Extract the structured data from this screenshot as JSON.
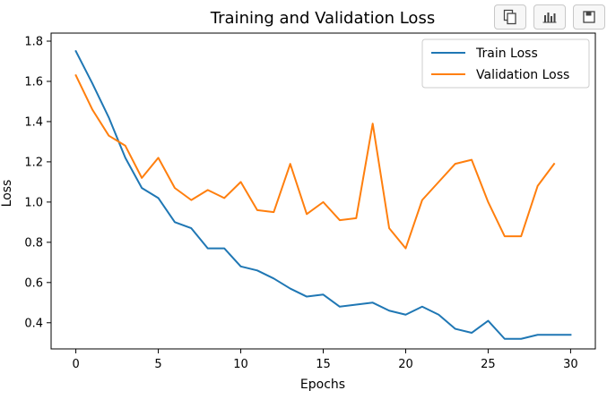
{
  "toolbar": {
    "buttons": [
      {
        "icon": "copy-icon"
      },
      {
        "icon": "bar-chart-icon"
      },
      {
        "icon": "save-icon"
      }
    ]
  },
  "chart_data": {
    "type": "line",
    "title": "Training and Validation Loss",
    "xlabel": "Epochs",
    "ylabel": "Loss",
    "xlim": [
      -1.5,
      31.5
    ],
    "ylim": [
      0.27,
      1.84
    ],
    "xticks": [
      0,
      5,
      10,
      15,
      20,
      25,
      30
    ],
    "yticks": [
      0.4,
      0.6,
      0.8,
      1.0,
      1.2,
      1.4,
      1.6,
      1.8
    ],
    "ytick_labels": [
      "0.4",
      "0.6",
      "0.8",
      "1.0",
      "1.2",
      "1.4",
      "1.6",
      "1.8"
    ],
    "grid": false,
    "legend_position": "top-right",
    "series": [
      {
        "name": "Train Loss",
        "color": "#1f77b4",
        "x": [
          0,
          1,
          2,
          3,
          4,
          5,
          6,
          7,
          8,
          9,
          10,
          11,
          12,
          13,
          14,
          15,
          16,
          17,
          18,
          19,
          20,
          21,
          22,
          23,
          24,
          25,
          26,
          27,
          28,
          29,
          30
        ],
        "values": [
          1.75,
          1.59,
          1.42,
          1.22,
          1.07,
          1.02,
          0.9,
          0.87,
          0.77,
          0.77,
          0.68,
          0.66,
          0.62,
          0.57,
          0.53,
          0.54,
          0.48,
          0.49,
          0.5,
          0.46,
          0.44,
          0.48,
          0.44,
          0.37,
          0.35,
          0.41,
          0.32,
          0.32,
          0.34,
          0.34,
          0.34
        ]
      },
      {
        "name": "Validation Loss",
        "color": "#ff7f0e",
        "x": [
          0,
          1,
          2,
          3,
          4,
          5,
          6,
          7,
          8,
          9,
          10,
          11,
          12,
          13,
          14,
          15,
          16,
          17,
          18,
          19,
          20,
          21,
          22,
          23,
          24,
          25,
          26,
          27,
          28,
          29
        ],
        "values": [
          1.63,
          1.46,
          1.33,
          1.28,
          1.12,
          1.22,
          1.07,
          1.01,
          1.06,
          1.02,
          1.1,
          0.96,
          0.95,
          1.19,
          0.94,
          1.0,
          0.91,
          0.92,
          1.39,
          0.87,
          0.77,
          1.01,
          1.1,
          1.19,
          1.21,
          1.0,
          0.83,
          0.83,
          1.08,
          1.19
        ]
      }
    ]
  }
}
